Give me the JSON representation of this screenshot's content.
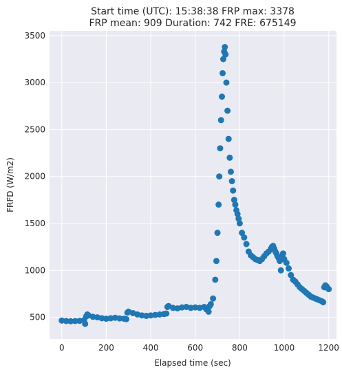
{
  "chart_data": {
    "type": "scatter",
    "title_line1": "Start time (UTC): 15:38:38 FRP max: 3378",
    "title_line2": "FRP mean: 909 Duration: 742 FRE: 675149",
    "xlabel": "Elapsed time (sec)",
    "ylabel": "FRFD (W/m2)",
    "xlim": [
      -55,
      1235
    ],
    "ylim": [
      270,
      3550
    ],
    "x_ticks": [
      0,
      200,
      400,
      600,
      800,
      1000,
      1200
    ],
    "y_ticks": [
      500,
      1000,
      1500,
      2000,
      2500,
      3000,
      3500
    ],
    "grid": true,
    "background": "#eaeaf2",
    "marker_color": "#1f77b4",
    "series": [
      {
        "x": [
          0,
          20,
          40,
          60,
          80,
          100,
          105,
          110,
          115,
          120,
          140,
          160,
          180,
          200,
          220,
          240,
          260,
          280,
          290,
          295,
          300,
          320,
          340,
          360,
          380,
          400,
          420,
          440,
          460,
          470,
          475,
          480,
          500,
          520,
          540,
          560,
          580,
          600,
          620,
          640,
          650,
          660,
          665,
          670,
          680,
          690,
          695,
          700,
          705,
          708,
          712,
          716,
          720,
          723,
          726,
          730,
          733,
          736,
          740,
          745,
          750,
          755,
          760,
          765,
          770,
          775,
          780,
          785,
          790,
          795,
          800,
          810,
          820,
          830,
          840,
          850,
          860,
          870,
          880,
          890,
          900,
          910,
          920,
          930,
          940,
          945,
          950,
          955,
          960,
          965,
          970,
          975,
          980,
          985,
          990,
          995,
          1000,
          1010,
          1020,
          1030,
          1040,
          1050,
          1060,
          1070,
          1080,
          1090,
          1100,
          1110,
          1120,
          1130,
          1140,
          1150,
          1160,
          1170,
          1175,
          1180,
          1185,
          1190,
          1195,
          1200
        ],
        "y": [
          465,
          460,
          458,
          460,
          462,
          470,
          430,
          510,
          530,
          520,
          505,
          500,
          490,
          485,
          490,
          495,
          488,
          485,
          480,
          550,
          560,
          545,
          530,
          520,
          515,
          520,
          525,
          530,
          535,
          540,
          610,
          620,
          600,
          595,
          605,
          610,
          600,
          605,
          600,
          610,
          585,
          560,
          620,
          640,
          700,
          900,
          1100,
          1400,
          1700,
          2000,
          2300,
          2600,
          2850,
          3100,
          3250,
          3330,
          3378,
          3300,
          3000,
          2700,
          2400,
          2200,
          2050,
          1950,
          1850,
          1750,
          1700,
          1640,
          1600,
          1550,
          1500,
          1400,
          1350,
          1280,
          1200,
          1160,
          1140,
          1120,
          1110,
          1100,
          1120,
          1150,
          1180,
          1200,
          1230,
          1250,
          1260,
          1230,
          1200,
          1180,
          1150,
          1130,
          1100,
          1000,
          1150,
          1180,
          1120,
          1080,
          1020,
          950,
          900,
          880,
          850,
          820,
          800,
          780,
          760,
          740,
          720,
          710,
          700,
          690,
          680,
          670,
          660,
          820,
          840,
          830,
          810,
          800
        ]
      }
    ]
  }
}
